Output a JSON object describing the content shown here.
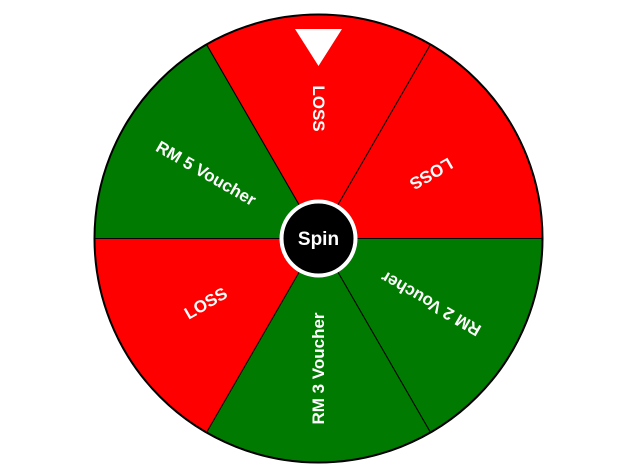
{
  "wheel": {
    "segments": [
      {
        "label": "LOSS",
        "color": "#ff0000"
      },
      {
        "label": "LOSS",
        "color": "#ff0000"
      },
      {
        "label": "RM 2 Voucher",
        "color": "#007a00"
      },
      {
        "label": "RM 3 Voucher",
        "color": "#007a00"
      },
      {
        "label": "LOSS",
        "color": "#ff0000"
      },
      {
        "label": "RM 5 Voucher",
        "color": "#007a00"
      }
    ],
    "border_color": "#000000",
    "label_color": "#ffffff"
  },
  "spin_button": {
    "label": "Spin",
    "fill": "#000000",
    "ring": "#ffffff"
  },
  "pointer": {
    "icon": "pointer-triangle-icon",
    "color": "#ffffff"
  }
}
